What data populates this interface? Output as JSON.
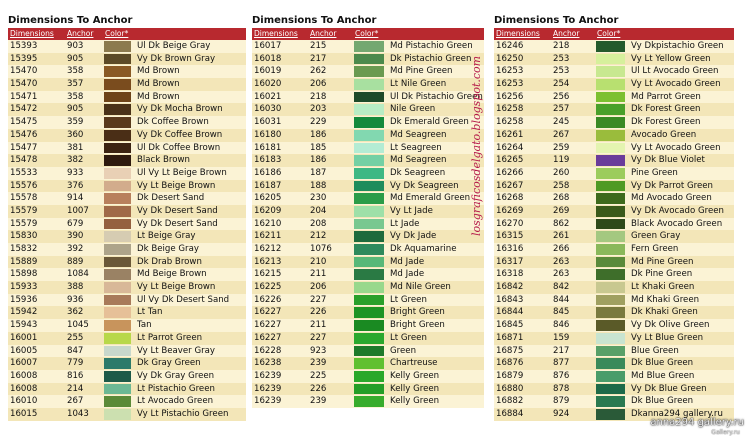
{
  "panels": [
    {
      "title": "Dimensions To Anchor",
      "headers": {
        "c1": "Dimensions",
        "c2": "Anchor",
        "c3": "Color*"
      },
      "rows": [
        {
          "dim": "15393",
          "anchor": "903",
          "color": "#8c7a4e",
          "name": "Ul Dk Beige Gray"
        },
        {
          "dim": "15395",
          "anchor": "905",
          "color": "#5c4a26",
          "name": "Vy Dk Brown Gray"
        },
        {
          "dim": "15470",
          "anchor": "358",
          "color": "#8a5a24",
          "name": "Md Brown"
        },
        {
          "dim": "15470",
          "anchor": "357",
          "color": "#7a4c1e",
          "name": "Md Brown"
        },
        {
          "dim": "15471",
          "anchor": "358",
          "color": "#6e4419",
          "name": "Md Brown"
        },
        {
          "dim": "15472",
          "anchor": "905",
          "color": "#4a3218",
          "name": "Vy Dk Mocha Brown"
        },
        {
          "dim": "15475",
          "anchor": "359",
          "color": "#5a3a1c",
          "name": "Dk Coffee Brown"
        },
        {
          "dim": "15476",
          "anchor": "360",
          "color": "#4a2e16",
          "name": "Vy Dk Coffee Brown"
        },
        {
          "dim": "15477",
          "anchor": "381",
          "color": "#3c2412",
          "name": "Ul Dk Coffee Brown"
        },
        {
          "dim": "15478",
          "anchor": "382",
          "color": "#2e1a0e",
          "name": "Black Brown"
        },
        {
          "dim": "15533",
          "anchor": "933",
          "color": "#e9d0b5",
          "name": "Ul Vy Lt Beige Brown"
        },
        {
          "dim": "15576",
          "anchor": "376",
          "color": "#d2ac8c",
          "name": "Vy Lt Beige Brown"
        },
        {
          "dim": "15578",
          "anchor": "914",
          "color": "#b8805c",
          "name": "Dk Desert Sand"
        },
        {
          "dim": "15579",
          "anchor": "1007",
          "color": "#a06a48",
          "name": "Vy Dk Desert Sand"
        },
        {
          "dim": "15579",
          "anchor": "679",
          "color": "#946040",
          "name": "Vy Dk Desert Sand"
        },
        {
          "dim": "15830",
          "anchor": "390",
          "color": "#d6ccb2",
          "name": "Lt Beige Gray"
        },
        {
          "dim": "15832",
          "anchor": "392",
          "color": "#ada48a",
          "name": "Dk Beige Gray"
        },
        {
          "dim": "15889",
          "anchor": "889",
          "color": "#6a5838",
          "name": "Dk Drab Brown"
        },
        {
          "dim": "15898",
          "anchor": "1084",
          "color": "#9a8264",
          "name": "Md Beige Brown"
        },
        {
          "dim": "15933",
          "anchor": "388",
          "color": "#d8b898",
          "name": "Vy Lt Beige Brown"
        },
        {
          "dim": "15936",
          "anchor": "936",
          "color": "#a87a5a",
          "name": "Ul Vy Dk Desert Sand"
        },
        {
          "dim": "15942",
          "anchor": "362",
          "color": "#e6c098",
          "name": "Lt Tan"
        },
        {
          "dim": "15943",
          "anchor": "1045",
          "color": "#c8945c",
          "name": "Tan"
        },
        {
          "dim": "16001",
          "anchor": "255",
          "color": "#b8d84a",
          "name": "Lt Parrot Green"
        },
        {
          "dim": "16005",
          "anchor": "847",
          "color": "#c8d8cc",
          "name": "Vy Lt Beaver Gray"
        },
        {
          "dim": "16007",
          "anchor": "779",
          "color": "#2c7a6a",
          "name": "Dk Gray Green"
        },
        {
          "dim": "16008",
          "anchor": "816",
          "color": "#1e5a48",
          "name": "Vy Dk Gray Green"
        },
        {
          "dim": "16008",
          "anchor": "214",
          "color": "#6cb894",
          "name": "Lt Pistachio Green"
        },
        {
          "dim": "16010",
          "anchor": "267",
          "color": "#5c8a38",
          "name": "Lt Avocado Green"
        },
        {
          "dim": "16015",
          "anchor": "1043",
          "color": "#cce0b0",
          "name": "Vy Lt Pistachio Green"
        }
      ]
    },
    {
      "title": "Dimensions To Anchor",
      "headers": {
        "c1": "Dimensions",
        "c2": "Anchor",
        "c3": "Color*"
      },
      "rows": [
        {
          "dim": "16017",
          "anchor": "215",
          "color": "#74a870",
          "name": "Md Pistachio Green"
        },
        {
          "dim": "16018",
          "anchor": "217",
          "color": "#4c8a4c",
          "name": "Dk Pistachio Green"
        },
        {
          "dim": "16019",
          "anchor": "262",
          "color": "#6a9a50",
          "name": "Md Pine Green"
        },
        {
          "dim": "16020",
          "anchor": "206",
          "color": "#a8e0a0",
          "name": "Lt Nile Green"
        },
        {
          "dim": "16021",
          "anchor": "218",
          "color": "#1e4a2a",
          "name": "Ul Dk Pistachio Green"
        },
        {
          "dim": "16030",
          "anchor": "203",
          "color": "#b8ecc4",
          "name": "Nile Green"
        },
        {
          "dim": "16031",
          "anchor": "229",
          "color": "#148a3c",
          "name": "Dk Emerald Green"
        },
        {
          "dim": "16180",
          "anchor": "186",
          "color": "#82d8b0",
          "name": "Md Seagreen"
        },
        {
          "dim": "16181",
          "anchor": "185",
          "color": "#b4ecd4",
          "name": "Lt Seagreen"
        },
        {
          "dim": "16183",
          "anchor": "186",
          "color": "#74d0a4",
          "name": "Md Seagreen"
        },
        {
          "dim": "16186",
          "anchor": "187",
          "color": "#3eb884",
          "name": "Dk Seagreen"
        },
        {
          "dim": "16187",
          "anchor": "188",
          "color": "#1e8c5c",
          "name": "Vy Dk Seagreen"
        },
        {
          "dim": "16205",
          "anchor": "230",
          "color": "#2a9c48",
          "name": "Md Emerald Green"
        },
        {
          "dim": "16209",
          "anchor": "204",
          "color": "#9ee0a8",
          "name": "Vy Lt Jade"
        },
        {
          "dim": "16210",
          "anchor": "208",
          "color": "#78c890",
          "name": "Lt Jade"
        },
        {
          "dim": "16211",
          "anchor": "212",
          "color": "#1e6a3c",
          "name": "Vy Dk Jade"
        },
        {
          "dim": "16212",
          "anchor": "1076",
          "color": "#2e8a5c",
          "name": "Dk Aquamarine"
        },
        {
          "dim": "16213",
          "anchor": "210",
          "color": "#58b878",
          "name": "Md Jade"
        },
        {
          "dim": "16215",
          "anchor": "211",
          "color": "#2a7a44",
          "name": "Md Jade"
        },
        {
          "dim": "16225",
          "anchor": "206",
          "color": "#98d88c",
          "name": "Md Nile Green"
        },
        {
          "dim": "16226",
          "anchor": "227",
          "color": "#2aa02a",
          "name": "Lt Green"
        },
        {
          "dim": "16227",
          "anchor": "226",
          "color": "#1e9424",
          "name": "Bright Green"
        },
        {
          "dim": "16227",
          "anchor": "211",
          "color": "#1a8a22",
          "name": "Bright Green"
        },
        {
          "dim": "16227",
          "anchor": "227",
          "color": "#2aa82e",
          "name": "Lt Green"
        },
        {
          "dim": "16228",
          "anchor": "923",
          "color": "#1e7a2a",
          "name": "Green"
        },
        {
          "dim": "16238",
          "anchor": "239",
          "color": "#60c030",
          "name": "Chartreuse"
        },
        {
          "dim": "16239",
          "anchor": "225",
          "color": "#2aa82a",
          "name": "Kelly Green"
        },
        {
          "dim": "16239",
          "anchor": "226",
          "color": "#249e26",
          "name": "Kelly Green"
        },
        {
          "dim": "16239",
          "anchor": "239",
          "color": "#38ac2c",
          "name": "Kelly Green"
        }
      ]
    },
    {
      "title": "Dimensions To Anchor",
      "headers": {
        "c1": "Dimensions",
        "c2": "Anchor",
        "c3": "Color*"
      },
      "rows": [
        {
          "dim": "16246",
          "anchor": "218",
          "color": "#245a2c",
          "name": "Vy Dkpistachio Green"
        },
        {
          "dim": "16250",
          "anchor": "253",
          "color": "#d6f09c",
          "name": "Vy Lt Yellow Green"
        },
        {
          "dim": "16253",
          "anchor": "253",
          "color": "#c8e890",
          "name": "Ul Lt Avocado Green"
        },
        {
          "dim": "16253",
          "anchor": "254",
          "color": "#b8e070",
          "name": "Vy Lt Avocado Green"
        },
        {
          "dim": "16256",
          "anchor": "256",
          "color": "#7cc030",
          "name": "Md Parrot Green"
        },
        {
          "dim": "16258",
          "anchor": "257",
          "color": "#4aa02a",
          "name": "Dk Forest Green"
        },
        {
          "dim": "16258",
          "anchor": "245",
          "color": "#3a8a24",
          "name": "Dk Forest Green"
        },
        {
          "dim": "16261",
          "anchor": "267",
          "color": "#9abc3c",
          "name": "Avocado Green"
        },
        {
          "dim": "16264",
          "anchor": "259",
          "color": "#e4f4b0",
          "name": "Vy Lt Avocado Green"
        },
        {
          "dim": "16265",
          "anchor": "119",
          "color": "#6a3c9a",
          "name": "Vy Dk Blue Violet"
        },
        {
          "dim": "16266",
          "anchor": "260",
          "color": "#9ccc5c",
          "name": "Pine Green"
        },
        {
          "dim": "16267",
          "anchor": "258",
          "color": "#4e9a24",
          "name": "Vy Dk Parrot Green"
        },
        {
          "dim": "16268",
          "anchor": "268",
          "color": "#3e6a1c",
          "name": "Md Avocado Green"
        },
        {
          "dim": "16269",
          "anchor": "269",
          "color": "#3a5a1a",
          "name": "Vy Dk Avocado Green"
        },
        {
          "dim": "16270",
          "anchor": "862",
          "color": "#2e4a1a",
          "name": "Black Avocado Green"
        },
        {
          "dim": "16315",
          "anchor": "261",
          "color": "#a4c880",
          "name": "Green Gray"
        },
        {
          "dim": "16316",
          "anchor": "266",
          "color": "#8ab85a",
          "name": "Fern Green"
        },
        {
          "dim": "16317",
          "anchor": "263",
          "color": "#5a8a3a",
          "name": "Md Pine Green"
        },
        {
          "dim": "16318",
          "anchor": "263",
          "color": "#3e6e2a",
          "name": "Dk Pine Green"
        },
        {
          "dim": "16842",
          "anchor": "842",
          "color": "#c8c890",
          "name": "Lt Khaki Green"
        },
        {
          "dim": "16843",
          "anchor": "844",
          "color": "#a0a060",
          "name": "Md Khaki Green"
        },
        {
          "dim": "16844",
          "anchor": "845",
          "color": "#7a7a3e",
          "name": "Dk Khaki Green"
        },
        {
          "dim": "16845",
          "anchor": "846",
          "color": "#5a5a28",
          "name": "Vy Dk Olive Green"
        },
        {
          "dim": "16871",
          "anchor": "159",
          "color": "#c8e4d0",
          "name": "Vy Lt Blue Green"
        },
        {
          "dim": "16875",
          "anchor": "217",
          "color": "#58a068",
          "name": "Blue Green"
        },
        {
          "dim": "16876",
          "anchor": "877",
          "color": "#3a8a5a",
          "name": "Dk Blue Green"
        },
        {
          "dim": "16879",
          "anchor": "876",
          "color": "#4a9c6a",
          "name": "Md Blue Green"
        },
        {
          "dim": "16880",
          "anchor": "878",
          "color": "#1e6a48",
          "name": "Vy Dk Blue Green"
        },
        {
          "dim": "16882",
          "anchor": "879",
          "color": "#2a7a50",
          "name": "Dk Blue Green"
        },
        {
          "dim": "16884",
          "anchor": "924",
          "color": "#2a5a38",
          "name": "Dkanna294 gallery.ru"
        }
      ]
    }
  ],
  "watermark": "losgraficosdelgato.blogspot.com",
  "stamp": "anna294 gallery.ru",
  "stamp_small": "Gallery.ru"
}
